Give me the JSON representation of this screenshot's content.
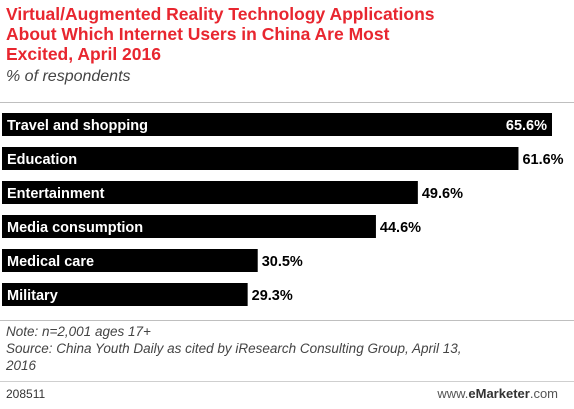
{
  "chart_data": {
    "type": "bar",
    "orientation": "horizontal",
    "title_lines": [
      "Virtual/Augmented Reality Technology Applications",
      "About Which Internet Users in China Are Most",
      "Excited, April 2016"
    ],
    "subtitle": "% of respondents",
    "categories": [
      "Travel and shopping",
      "Education",
      "Entertainment",
      "Media consumption",
      "Medical care",
      "Military"
    ],
    "values": [
      65.6,
      61.6,
      49.6,
      44.6,
      30.5,
      29.3
    ],
    "value_labels": [
      "65.6%",
      "61.6%",
      "49.6%",
      "44.6%",
      "30.5%",
      "29.3%"
    ],
    "xlim": [
      0,
      65.6
    ],
    "grid": false,
    "bar_color": "#000000",
    "label_color": "#ffffff",
    "value_color": "#000000"
  },
  "notes": {
    "note": "Note: n=2,001 ages 17+",
    "source_lines": [
      "Source: China Youth Daily as cited by iResearch Consulting Group, April 13,",
      "2016"
    ]
  },
  "footer": {
    "chart_id": "208511",
    "brand_prefix": "www.",
    "brand_name": "eMarketer",
    "brand_suffix": ".com"
  }
}
